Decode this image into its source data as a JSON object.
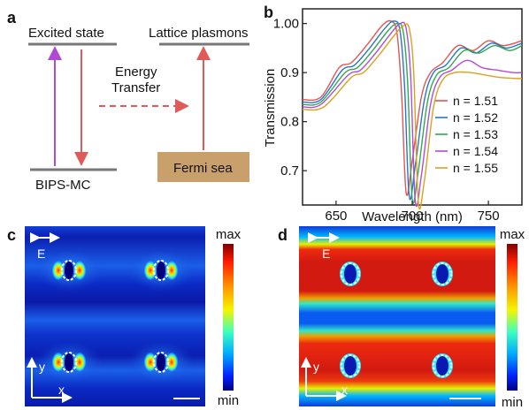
{
  "panels": {
    "a": {
      "letter": "a",
      "excited_state": "Excited state",
      "lattice_plasmons": "Lattice plasmons",
      "energy_transfer_line1": "Energy",
      "energy_transfer_line2": "Transfer",
      "molecule": "BIPS-MC",
      "fermi_sea": "Fermi sea",
      "colors": {
        "arrow_up": "#b04ad6",
        "arrow_red": "#e05a5a",
        "fermi_box": "#c9a06b",
        "level": "#777777"
      }
    },
    "b": {
      "letter": "b"
    },
    "c": {
      "letter": "c",
      "field_label": "E",
      "axis_y": "y",
      "axis_x": "x",
      "colorbar_max": "max",
      "colorbar_min": "min",
      "background_level": "low"
    },
    "d": {
      "letter": "d",
      "field_label": "E",
      "axis_y": "y",
      "axis_x": "x",
      "colorbar_max": "max",
      "colorbar_min": "min",
      "background_level": "high"
    }
  },
  "chart_data": {
    "type": "line",
    "title": "",
    "xlabel": "Wavelength (nm)",
    "ylabel": "Transmission",
    "xlim": [
      628,
      772
    ],
    "ylim": [
      0.63,
      1.03
    ],
    "xticks": [
      650,
      700,
      750
    ],
    "yticks": [
      0.7,
      0.8,
      0.9,
      1.0
    ],
    "ytick_labels": [
      "0.7",
      "0.8",
      "0.9",
      "1.00"
    ],
    "legend_placement": "right",
    "series": [
      {
        "name": "n = 1.51",
        "color": "#e05555",
        "x": [
          628,
          640,
          652,
          660,
          670,
          680,
          686,
          690,
          693,
          696,
          700,
          706,
          712,
          720,
          730,
          740,
          750,
          760,
          772
        ],
        "y": [
          0.845,
          0.85,
          0.91,
          0.92,
          0.955,
          0.995,
          1.005,
          0.98,
          0.86,
          0.655,
          0.72,
          0.85,
          0.9,
          0.92,
          0.955,
          0.945,
          0.965,
          0.955,
          0.965
        ]
      },
      {
        "name": "n = 1.52",
        "color": "#2b73c9",
        "x": [
          628,
          640,
          654,
          662,
          672,
          682,
          688,
          692,
          695,
          698,
          702,
          708,
          714,
          722,
          732,
          742,
          752,
          762,
          772
        ],
        "y": [
          0.84,
          0.845,
          0.905,
          0.915,
          0.95,
          0.99,
          1.005,
          0.985,
          0.87,
          0.648,
          0.71,
          0.845,
          0.9,
          0.915,
          0.95,
          0.94,
          0.96,
          0.95,
          0.96
        ]
      },
      {
        "name": "n = 1.53",
        "color": "#2fa84f",
        "x": [
          628,
          640,
          656,
          664,
          674,
          684,
          690,
          694,
          697,
          700,
          704,
          710,
          716,
          724,
          734,
          744,
          754,
          764,
          772
        ],
        "y": [
          0.835,
          0.84,
          0.9,
          0.91,
          0.945,
          0.985,
          1.0,
          0.985,
          0.88,
          0.642,
          0.7,
          0.84,
          0.895,
          0.91,
          0.945,
          0.94,
          0.955,
          0.945,
          0.955
        ]
      },
      {
        "name": "n = 1.54",
        "color": "#b54ad6",
        "x": [
          628,
          640,
          658,
          666,
          676,
          686,
          692,
          696,
          699,
          702,
          706,
          712,
          718,
          726,
          736,
          746,
          756,
          766,
          772
        ],
        "y": [
          0.83,
          0.835,
          0.895,
          0.905,
          0.94,
          0.98,
          1.0,
          0.99,
          0.89,
          0.638,
          0.69,
          0.835,
          0.89,
          0.905,
          0.925,
          0.91,
          0.905,
          0.9,
          0.9
        ]
      },
      {
        "name": "n = 1.55",
        "color": "#d9a21a",
        "x": [
          628,
          642,
          660,
          668,
          678,
          688,
          694,
          698,
          701,
          704,
          708,
          714,
          720,
          728,
          738,
          748,
          758,
          768,
          772
        ],
        "y": [
          0.825,
          0.83,
          0.89,
          0.9,
          0.935,
          0.975,
          0.995,
          0.99,
          0.9,
          0.635,
          0.68,
          0.83,
          0.885,
          0.9,
          0.9,
          0.895,
          0.89,
          0.888,
          0.888
        ]
      }
    ]
  }
}
